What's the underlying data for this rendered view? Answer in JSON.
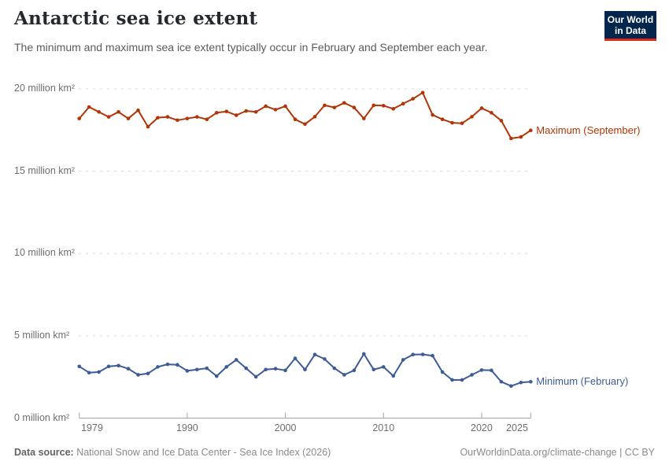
{
  "header": {
    "title": "Antarctic sea ice extent",
    "subtitle": "The minimum and maximum sea ice extent typically occur in February and September each year.",
    "logo": {
      "line1": "Our World",
      "line2": "in Data",
      "bg_color": "#04264d",
      "accent_color": "#dc2a1f"
    }
  },
  "chart_data": {
    "type": "line",
    "title": "Antarctic sea ice extent",
    "xlabel": "",
    "ylabel": "million km²",
    "x_range": [
      1979,
      2025
    ],
    "y_range": [
      0,
      20
    ],
    "grid": "horizontal-dashed",
    "legend_position": "right-of-line-ends",
    "x": [
      1979,
      1980,
      1981,
      1982,
      1983,
      1984,
      1985,
      1986,
      1987,
      1988,
      1989,
      1990,
      1991,
      1992,
      1993,
      1994,
      1995,
      1996,
      1997,
      1998,
      1999,
      2000,
      2001,
      2002,
      2003,
      2004,
      2005,
      2006,
      2007,
      2008,
      2009,
      2010,
      2011,
      2012,
      2013,
      2014,
      2015,
      2016,
      2017,
      2018,
      2019,
      2020,
      2021,
      2022,
      2023,
      2024,
      2025
    ],
    "series": [
      {
        "name": "Maximum (September)",
        "color": "#B13507",
        "values": [
          18.2,
          18.9,
          18.6,
          18.3,
          18.6,
          18.2,
          18.7,
          17.7,
          18.25,
          18.3,
          18.1,
          18.2,
          18.3,
          18.15,
          18.55,
          18.63,
          18.4,
          18.66,
          18.6,
          18.95,
          18.74,
          18.95,
          18.15,
          17.86,
          18.31,
          19.0,
          18.87,
          19.15,
          18.87,
          18.2,
          19.0,
          18.98,
          18.79,
          19.1,
          19.4,
          19.77,
          18.42,
          18.15,
          17.94,
          17.91,
          18.31,
          18.83,
          18.55,
          18.07,
          16.99,
          17.08,
          17.48
        ]
      },
      {
        "name": "Minimum (February)",
        "color": "#3D5C96",
        "values": [
          3.14,
          2.76,
          2.8,
          3.14,
          3.19,
          3.0,
          2.63,
          2.71,
          3.11,
          3.27,
          3.24,
          2.87,
          2.95,
          3.03,
          2.55,
          3.11,
          3.54,
          3.03,
          2.51,
          2.95,
          3.0,
          2.9,
          3.63,
          2.95,
          3.86,
          3.59,
          3.03,
          2.63,
          2.9,
          3.9,
          2.95,
          3.11,
          2.56,
          3.54,
          3.86,
          3.87,
          3.79,
          2.8,
          2.32,
          2.32,
          2.63,
          2.92,
          2.9,
          2.21,
          1.95,
          2.16,
          2.21
        ]
      }
    ],
    "yticks": [
      {
        "value": 0,
        "label": "0 million km²"
      },
      {
        "value": 5,
        "label": "5 million km²"
      },
      {
        "value": 10,
        "label": "10 million km²"
      },
      {
        "value": 15,
        "label": "15 million km²"
      },
      {
        "value": 20,
        "label": "20 million km²"
      }
    ],
    "xticks": [
      {
        "value": 1979,
        "label": "1979"
      },
      {
        "value": 1990,
        "label": "1990"
      },
      {
        "value": 2000,
        "label": "2000"
      },
      {
        "value": 2010,
        "label": "2010"
      },
      {
        "value": 2020,
        "label": "2020"
      },
      {
        "value": 2025,
        "label": "2025"
      }
    ]
  },
  "footer": {
    "source_label": "Data source:",
    "source_value": " National Snow and Ice Data Center - Sea Ice Index (2026)",
    "link": "OurWorldinData.org/climate-change | CC BY"
  }
}
